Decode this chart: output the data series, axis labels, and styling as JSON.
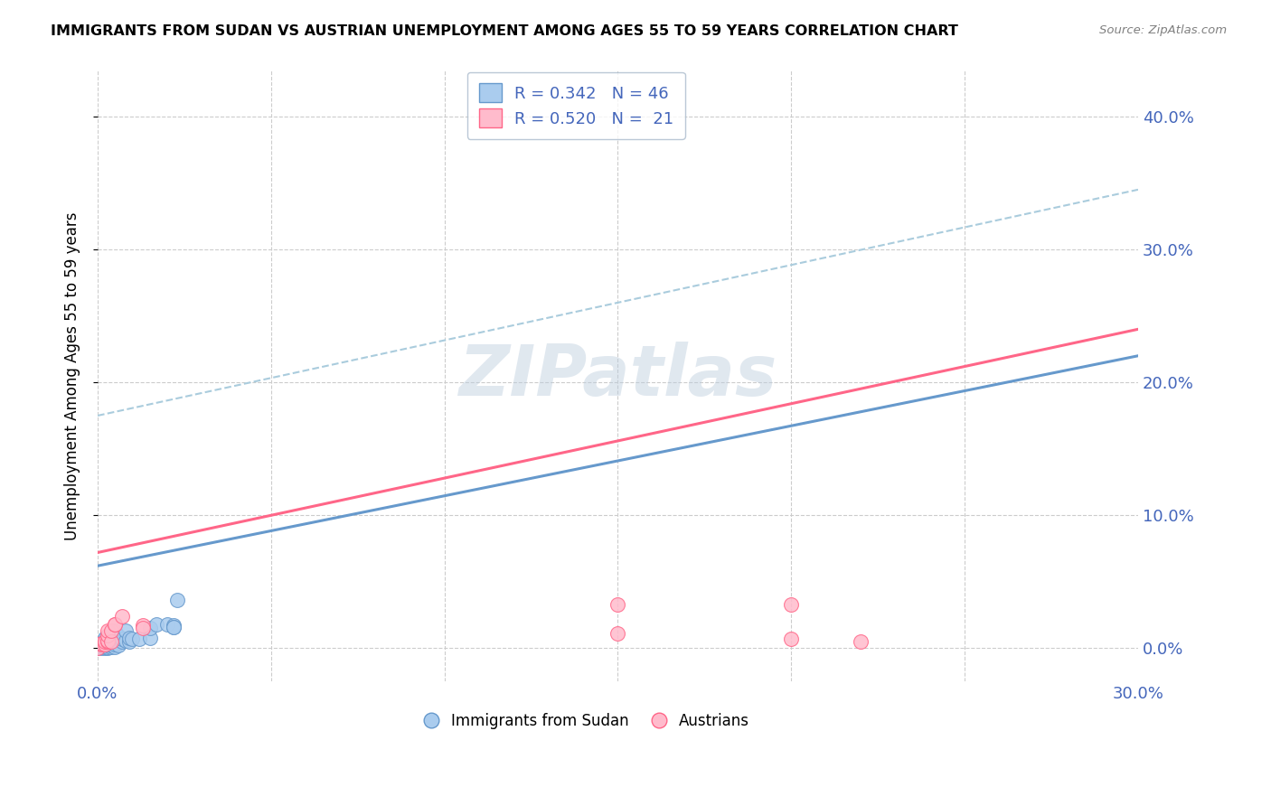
{
  "title": "IMMIGRANTS FROM SUDAN VS AUSTRIAN UNEMPLOYMENT AMONG AGES 55 TO 59 YEARS CORRELATION CHART",
  "source": "Source: ZipAtlas.com",
  "ylabel": "Unemployment Among Ages 55 to 59 years",
  "xlim": [
    0.0,
    0.3
  ],
  "ylim": [
    -0.025,
    0.435
  ],
  "xticks_labeled": [
    0.0,
    0.3
  ],
  "xticks_minor": [
    0.05,
    0.1,
    0.15,
    0.2,
    0.25
  ],
  "yticks": [
    0.0,
    0.1,
    0.2,
    0.3,
    0.4
  ],
  "blue_scatter": [
    [
      0.0,
      0.0
    ],
    [
      0.0,
      0.001
    ],
    [
      0.001,
      0.0
    ],
    [
      0.001,
      0.001
    ],
    [
      0.001,
      0.002
    ],
    [
      0.001,
      0.003
    ],
    [
      0.002,
      0.0
    ],
    [
      0.002,
      0.001
    ],
    [
      0.002,
      0.002
    ],
    [
      0.002,
      0.005
    ],
    [
      0.002,
      0.007
    ],
    [
      0.002,
      0.008
    ],
    [
      0.003,
      0.0
    ],
    [
      0.003,
      0.001
    ],
    [
      0.003,
      0.002
    ],
    [
      0.003,
      0.004
    ],
    [
      0.003,
      0.006
    ],
    [
      0.003,
      0.007
    ],
    [
      0.003,
      0.008
    ],
    [
      0.004,
      0.001
    ],
    [
      0.004,
      0.002
    ],
    [
      0.004,
      0.003
    ],
    [
      0.004,
      0.009
    ],
    [
      0.004,
      0.011
    ],
    [
      0.005,
      0.001
    ],
    [
      0.005,
      0.003
    ],
    [
      0.005,
      0.008
    ],
    [
      0.005,
      0.013
    ],
    [
      0.006,
      0.002
    ],
    [
      0.006,
      0.009
    ],
    [
      0.007,
      0.005
    ],
    [
      0.007,
      0.007
    ],
    [
      0.008,
      0.006
    ],
    [
      0.008,
      0.013
    ],
    [
      0.009,
      0.005
    ],
    [
      0.009,
      0.008
    ],
    [
      0.01,
      0.007
    ],
    [
      0.012,
      0.007
    ],
    [
      0.015,
      0.008
    ],
    [
      0.015,
      0.015
    ],
    [
      0.017,
      0.018
    ],
    [
      0.02,
      0.018
    ],
    [
      0.022,
      0.017
    ],
    [
      0.022,
      0.016
    ],
    [
      0.023,
      0.036
    ],
    [
      0.022,
      0.016
    ]
  ],
  "pink_scatter": [
    [
      0.0,
      0.0
    ],
    [
      0.001,
      0.003
    ],
    [
      0.001,
      0.004
    ],
    [
      0.002,
      0.003
    ],
    [
      0.002,
      0.005
    ],
    [
      0.003,
      0.005
    ],
    [
      0.003,
      0.006
    ],
    [
      0.003,
      0.01
    ],
    [
      0.003,
      0.013
    ],
    [
      0.004,
      0.005
    ],
    [
      0.004,
      0.013
    ],
    [
      0.005,
      0.018
    ],
    [
      0.005,
      0.018
    ],
    [
      0.007,
      0.024
    ],
    [
      0.013,
      0.017
    ],
    [
      0.013,
      0.015
    ],
    [
      0.15,
      0.011
    ],
    [
      0.15,
      0.033
    ],
    [
      0.2,
      0.007
    ],
    [
      0.2,
      0.033
    ],
    [
      0.22,
      0.005
    ]
  ],
  "blue_line": [
    [
      0.0,
      0.062
    ],
    [
      0.3,
      0.22
    ]
  ],
  "blue_dash_line": [
    [
      0.0,
      0.175
    ],
    [
      0.3,
      0.345
    ]
  ],
  "pink_line": [
    [
      0.0,
      0.072
    ],
    [
      0.3,
      0.24
    ]
  ],
  "blue_color": "#6699CC",
  "blue_dash_color": "#AACCDD",
  "pink_color": "#FF6688",
  "blue_scatter_color": "#AACCEE",
  "pink_scatter_color": "#FFBBCC",
  "legend_blue_R": "R = 0.342",
  "legend_blue_N": "N = 46",
  "legend_pink_R": "R = 0.520",
  "legend_pink_N": "N =  21",
  "watermark": "ZIPatlas",
  "axis_label_color": "#4466BB",
  "background_color": "#FFFFFF",
  "grid_color": "#CCCCCC"
}
